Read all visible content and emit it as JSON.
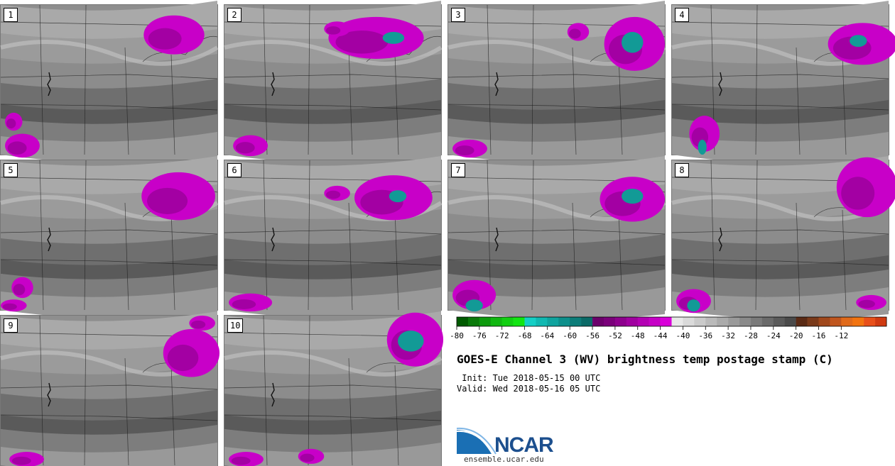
{
  "panels": [
    {
      "label": "1",
      "gray": "#8c8c8c",
      "blobs": [
        [
          0.8,
          0.2,
          0.14,
          0.13
        ],
        [
          0.1,
          0.94,
          0.08,
          0.08
        ],
        [
          0.06,
          0.78,
          0.04,
          0.06
        ]
      ],
      "teal": []
    },
    {
      "label": "2",
      "gray": "#8a8a8a",
      "blobs": [
        [
          0.7,
          0.22,
          0.22,
          0.14
        ],
        [
          0.52,
          0.16,
          0.06,
          0.05
        ],
        [
          0.12,
          0.94,
          0.08,
          0.07
        ]
      ],
      "teal": [
        [
          0.78,
          0.22,
          0.05,
          0.04
        ]
      ]
    },
    {
      "label": "3",
      "gray": "#8c8c8c",
      "blobs": [
        [
          0.86,
          0.26,
          0.14,
          0.18
        ],
        [
          0.6,
          0.18,
          0.05,
          0.06
        ],
        [
          0.1,
          0.96,
          0.08,
          0.06
        ]
      ],
      "teal": [
        [
          0.85,
          0.25,
          0.05,
          0.07
        ]
      ]
    },
    {
      "label": "4",
      "gray": "#8a8a8a",
      "blobs": [
        [
          0.88,
          0.26,
          0.16,
          0.14
        ],
        [
          0.15,
          0.86,
          0.07,
          0.12
        ]
      ],
      "teal": [
        [
          0.86,
          0.24,
          0.04,
          0.04
        ],
        [
          0.14,
          0.95,
          0.02,
          0.05
        ]
      ]
    },
    {
      "label": "5",
      "gray": "#8c8c8c",
      "blobs": [
        [
          0.82,
          0.24,
          0.17,
          0.16
        ],
        [
          0.1,
          0.85,
          0.05,
          0.07
        ],
        [
          0.06,
          0.97,
          0.06,
          0.04
        ]
      ],
      "teal": []
    },
    {
      "label": "6",
      "gray": "#8d8d8d",
      "blobs": [
        [
          0.78,
          0.25,
          0.18,
          0.15
        ],
        [
          0.52,
          0.22,
          0.06,
          0.05
        ],
        [
          0.12,
          0.95,
          0.1,
          0.06
        ]
      ],
      "teal": [
        [
          0.8,
          0.24,
          0.04,
          0.04
        ]
      ]
    },
    {
      "label": "7",
      "gray": "#8b8b8b",
      "blobs": [
        [
          0.85,
          0.26,
          0.15,
          0.15
        ],
        [
          0.12,
          0.9,
          0.1,
          0.1
        ]
      ],
      "teal": [
        [
          0.85,
          0.24,
          0.05,
          0.05
        ],
        [
          0.12,
          0.97,
          0.04,
          0.04
        ]
      ]
    },
    {
      "label": "8",
      "gray": "#8a8a8a",
      "blobs": [
        [
          0.9,
          0.18,
          0.14,
          0.2
        ],
        [
          0.1,
          0.94,
          0.08,
          0.08
        ],
        [
          0.92,
          0.95,
          0.07,
          0.05
        ]
      ],
      "teal": [
        [
          0.1,
          0.97,
          0.03,
          0.04
        ]
      ]
    },
    {
      "label": "9",
      "gray": "#8c8c8c",
      "blobs": [
        [
          0.88,
          0.25,
          0.13,
          0.16
        ],
        [
          0.93,
          0.05,
          0.06,
          0.05
        ],
        [
          0.12,
          0.96,
          0.08,
          0.05
        ]
      ],
      "teal": []
    },
    {
      "label": "10",
      "gray": "#8a8a8a",
      "blobs": [
        [
          0.88,
          0.16,
          0.13,
          0.18
        ],
        [
          0.1,
          0.96,
          0.08,
          0.05
        ],
        [
          0.4,
          0.94,
          0.06,
          0.05
        ]
      ],
      "teal": [
        [
          0.86,
          0.17,
          0.06,
          0.07
        ]
      ]
    }
  ],
  "colorbar": {
    "ticks": [
      "-80",
      "-76",
      "-72",
      "-68",
      "-64",
      "-60",
      "-56",
      "-52",
      "-48",
      "-44",
      "-40",
      "-36",
      "-32",
      "-28",
      "-24",
      "-20",
      "-16",
      "-12"
    ],
    "colors": [
      "#005a00",
      "#0a7a0a",
      "#0d9a0d",
      "#10b710",
      "#11cf11",
      "#12e512",
      "#14cfc5",
      "#10b8b1",
      "#0fa39e",
      "#0d8f8b",
      "#0c7d79",
      "#0a6a67",
      "#6b006b",
      "#7a007a",
      "#8d008d",
      "#a000a0",
      "#b300b3",
      "#c600c6",
      "#d900d9",
      "#e9e9e9",
      "#dadada",
      "#cacaca",
      "#bababa",
      "#aaaaaa",
      "#9a9a9a",
      "#8a8a8a",
      "#7a7a7a",
      "#6a6a6a",
      "#5a5a5a",
      "#4a4a4a",
      "#5a2a15",
      "#7a3a1a",
      "#a0481c",
      "#c0561e",
      "#e06a1a",
      "#f27410",
      "#e8501a",
      "#d03a12"
    ]
  },
  "title": "GOES-E Channel 3 (WV) brightness temp postage stamp (C)",
  "init_line": " Init: Tue 2018-05-15 00 UTC",
  "valid_line": "Valid: Wed 2018-05-16 05 UTC",
  "logo": {
    "text": "NCAR",
    "site": "ensemble.ucar.edu",
    "brand_color": "#1c4f8e",
    "swoosh_color": "#1a6fb4"
  }
}
